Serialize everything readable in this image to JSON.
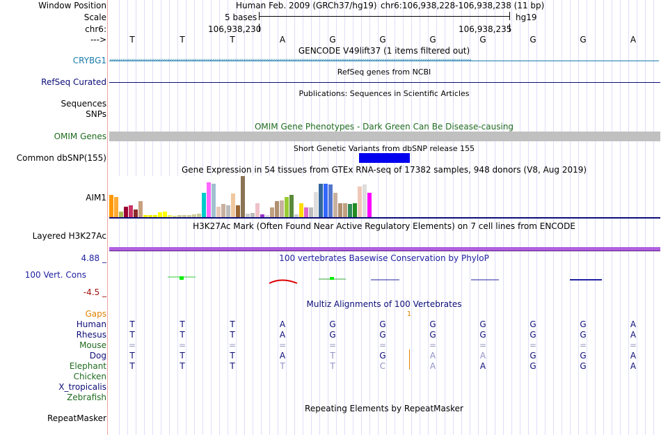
{
  "header": {
    "window_position_label": "Window Position",
    "assembly_text": "Human Feb. 2009 (GRCh37/hg19)",
    "position_text": "chr6:106,938,228-106,938,238 (11 bp)",
    "scale_label": "Scale",
    "scale_text": "5 bases",
    "db_label": "hg19",
    "chrom_label": "chr6:",
    "coord_left": "106,938,230",
    "coord_right": "106,938,235",
    "strand_label": "--->"
  },
  "ruler_bases": [
    "T",
    "T",
    "T",
    "A",
    "G",
    "G",
    "G",
    "G",
    "G",
    "G",
    "A"
  ],
  "tracks": {
    "gencode": {
      "title": "GENCODE V49lift37 (1 items filtered out)",
      "label": "CRYBG1",
      "color": "#1a7aa8"
    },
    "refseq": {
      "title": "RefSeq genes from NCBI",
      "label": "RefSeq Curated",
      "color": "#0c0c78"
    },
    "publications": {
      "title": "Publications: Sequences in Scientific Articles",
      "label_line1": "Sequences",
      "label_line2": "SNPs"
    },
    "omim": {
      "title": "OMIM Gene Phenotypes - Dark Green Can Be Disease-causing",
      "label": "OMIM Genes",
      "color": "#1f6b1f",
      "bar_color": "#c0c0c0"
    },
    "dbsnp": {
      "title": "Short Genetic Variants from dbSNP release 155",
      "label": "Common dbSNP(155)",
      "bar_color": "#0000ee"
    },
    "gtex": {
      "title": "Gene Expression in 54 tissues from GTEx RNA-seq of 17382 samples, 948 donors (V8, Aug 2019)",
      "label": "AIM1",
      "bars": [
        {
          "v": 0.55,
          "c": "#ff9900"
        },
        {
          "v": 0.5,
          "c": "#ffaa33"
        },
        {
          "v": 0.15,
          "c": "#aabb55"
        },
        {
          "v": 0.27,
          "c": "#990033"
        },
        {
          "v": 0.3,
          "c": "#cc3366"
        },
        {
          "v": 0.2,
          "c": "#8b2b2b"
        },
        {
          "v": 0.4,
          "c": "#c8a080"
        },
        {
          "v": 0.06,
          "c": "#eeee00"
        },
        {
          "v": 0.06,
          "c": "#eeee00"
        },
        {
          "v": 0.07,
          "c": "#eeee00"
        },
        {
          "v": 0.13,
          "c": "#ffff00"
        },
        {
          "v": 0.15,
          "c": "#ffff00"
        },
        {
          "v": 0.06,
          "c": "#eeee66"
        },
        {
          "v": 0.05,
          "c": "#dddd88"
        },
        {
          "v": 0.06,
          "c": "#cccc99"
        },
        {
          "v": 0.07,
          "c": "#cccc99"
        },
        {
          "v": 0.07,
          "c": "#cccc99"
        },
        {
          "v": 0.08,
          "c": "#cccc99"
        },
        {
          "v": 0.1,
          "c": "#cccc99"
        },
        {
          "v": 0.6,
          "c": "#00cccc"
        },
        {
          "v": 0.85,
          "c": "#ff66ff"
        },
        {
          "v": 0.82,
          "c": "#a0c0d0"
        },
        {
          "v": 0.27,
          "c": "#e8c8b8"
        },
        {
          "v": 0.33,
          "c": "#c8b0a0"
        },
        {
          "v": 0.3,
          "c": "#bbbbbb"
        },
        {
          "v": 0.58,
          "c": "#f0c8a0"
        },
        {
          "v": 0.3,
          "c": "#996633"
        },
        {
          "v": 1.0,
          "c": "#8b7355"
        },
        {
          "v": 0.1,
          "c": "#cccccc"
        },
        {
          "v": 0.12,
          "c": "#bbbbbb"
        },
        {
          "v": 0.35,
          "c": "#f0c0c8"
        },
        {
          "v": 0.08,
          "c": "#9933cc"
        },
        {
          "v": 0.06,
          "c": "#dddddd"
        },
        {
          "v": 0.25,
          "c": "#c0a080"
        },
        {
          "v": 0.4,
          "c": "#b09070"
        },
        {
          "v": 0.42,
          "c": "#c8b0a0"
        },
        {
          "v": 0.5,
          "c": "#99cc33"
        },
        {
          "v": 0.55,
          "c": "#5a8a3a"
        },
        {
          "v": 0.08,
          "c": "#cccccc"
        },
        {
          "v": 0.35,
          "c": "#ffdd00"
        },
        {
          "v": 0.25,
          "c": "#dd66cc"
        },
        {
          "v": 0.25,
          "c": "#bbbbbb"
        },
        {
          "v": 0.62,
          "c": "#dddddd"
        },
        {
          "v": 0.82,
          "c": "#336699"
        },
        {
          "v": 0.82,
          "c": "#3366ff"
        },
        {
          "v": 0.8,
          "c": "#5577cc"
        },
        {
          "v": 0.6,
          "c": "#c8b0a0"
        },
        {
          "v": 0.35,
          "c": "#b09070"
        },
        {
          "v": 0.35,
          "c": "#c0a080"
        },
        {
          "v": 0.33,
          "c": "#2e8b57"
        },
        {
          "v": 0.35,
          "c": "#228b22"
        },
        {
          "v": 0.75,
          "c": "#f0c8b8"
        },
        {
          "v": 0.8,
          "c": "#dddddd"
        },
        {
          "v": 0.6,
          "c": "#ff00ff"
        }
      ]
    },
    "h3k27ac": {
      "title": "H3K27Ac Mark (Often Found Near Active Regulatory Elements) on 7 cell lines from ENCODE",
      "label": "Layered H3K27Ac",
      "bar_color": "#b060e0"
    },
    "phylop": {
      "title": "100 vertebrates Basewise Conservation by PhyloP",
      "label": "100 Vert. Cons",
      "max_label": "4.88 _",
      "min_label": "-4.5 _",
      "title_color": "#2020a0",
      "max_color": "#2020a0",
      "min_color": "#a01010"
    },
    "multiz": {
      "title": "Multiz Alignments of 100 Vertebrates",
      "gaps_label": "Gaps",
      "gaps_value": "1",
      "gaps_color": "#e08000",
      "species": [
        {
          "name": "Human",
          "color": "#0c0c78",
          "bases": [
            "T",
            "T",
            "T",
            "A",
            "G",
            "G",
            "G",
            "G",
            "G",
            "G",
            "A"
          ],
          "faded": []
        },
        {
          "name": "Rhesus",
          "color": "#0c0c78",
          "bases": [
            "T",
            "T",
            "T",
            "A",
            "G",
            "G",
            "G",
            "G",
            "G",
            "G",
            "A"
          ],
          "faded": []
        },
        {
          "name": "Mouse",
          "color": "#1f6b1f",
          "bases": [
            "=",
            "=",
            "=",
            "=",
            "=",
            "=",
            "=",
            "=",
            "=",
            "=",
            "="
          ],
          "faded": []
        },
        {
          "name": "Dog",
          "color": "#0c0c78",
          "bases": [
            "T",
            "T",
            "T",
            "A",
            "T",
            "G",
            "A",
            "A",
            "G",
            "G",
            "A"
          ],
          "faded": [
            4,
            6,
            7
          ]
        },
        {
          "name": "Elephant",
          "color": "#1f6b1f",
          "bases": [
            "T",
            "T",
            "T",
            "T",
            "T",
            "C",
            "A",
            "A",
            "G",
            "G",
            "A"
          ],
          "faded": [
            3,
            4,
            5,
            6
          ]
        },
        {
          "name": "Chicken",
          "color": "#1f6b1f",
          "bases": [],
          "faded": []
        },
        {
          "name": "X_tropicalis",
          "color": "#0c0c78",
          "bases": [],
          "faded": []
        },
        {
          "name": "Zebrafish",
          "color": "#1f6b1f",
          "bases": [],
          "faded": []
        }
      ]
    },
    "repeatmasker": {
      "title": "Repeating Elements by RepeatMasker",
      "label": "RepeatMasker"
    }
  }
}
